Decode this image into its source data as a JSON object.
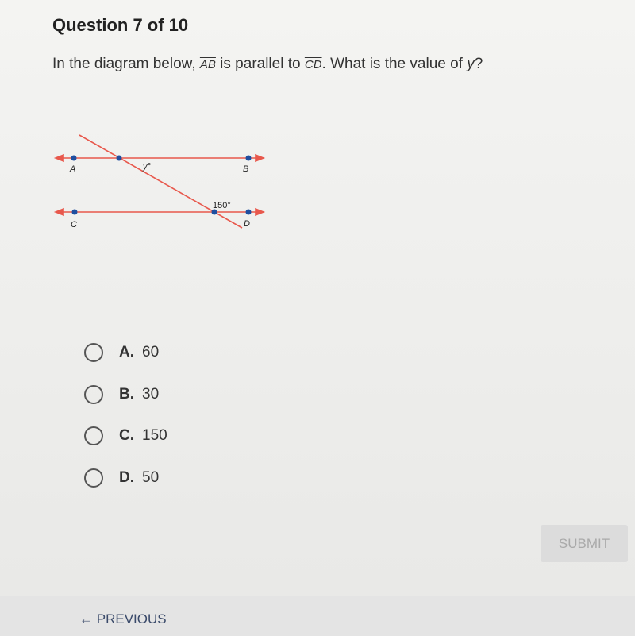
{
  "header": {
    "title": "Question 7 of 10"
  },
  "question": {
    "parts": [
      "In the diagram below, ",
      "AB",
      " is parallel to ",
      "CD",
      ". What is the value of ",
      "y",
      "?"
    ]
  },
  "diagram": {
    "points": [
      "A",
      "B",
      "C",
      "D"
    ],
    "angle_y": "y°",
    "angle_given": "150°"
  },
  "options": [
    {
      "letter": "A.",
      "text": "60"
    },
    {
      "letter": "B.",
      "text": "30"
    },
    {
      "letter": "C.",
      "text": "150"
    },
    {
      "letter": "D.",
      "text": "50"
    }
  ],
  "footer": {
    "submit": "SUBMIT",
    "previous": "PREVIOUS"
  }
}
